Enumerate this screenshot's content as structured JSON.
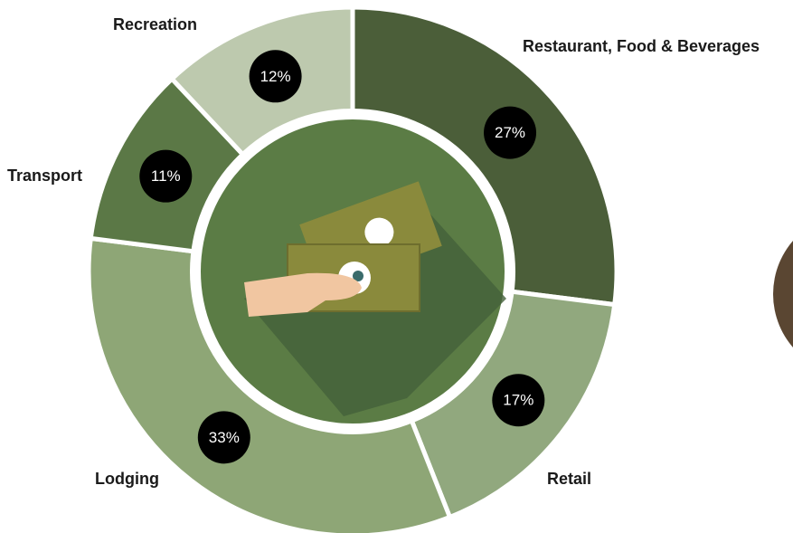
{
  "chart_data": {
    "type": "pie",
    "categories": [
      "Restaurant, Food & Beverages",
      "Retail",
      "Lodging",
      "Transport",
      "Recreation"
    ],
    "values": [
      27,
      17,
      33,
      11,
      12
    ],
    "value_labels": [
      "27%",
      "17%",
      "33%",
      "11%",
      "12%"
    ],
    "colors": [
      "#4b5e39",
      "#91a87e",
      "#8ea676",
      "#5b7846",
      "#bdc9ae"
    ]
  }
}
